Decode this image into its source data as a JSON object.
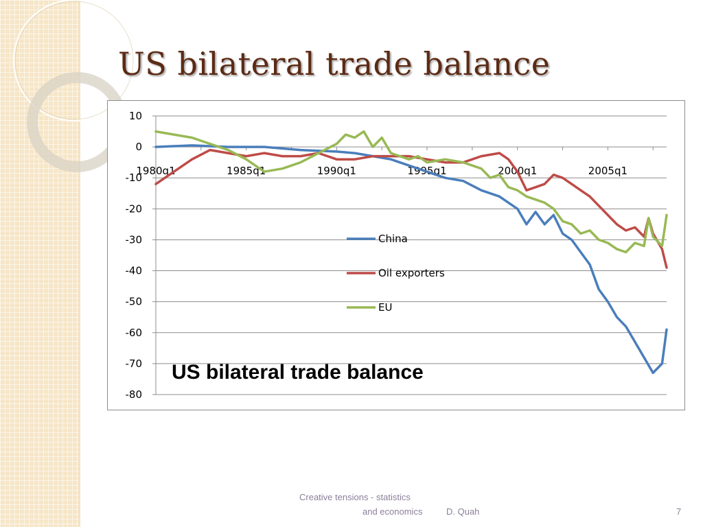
{
  "slide": {
    "title": "US bilateral trade balance",
    "caption": "US bilateral trade balance",
    "footer_line1": "Creative tensions - statistics",
    "footer_line2": "and economics",
    "author": "D. Quah",
    "page_number": "7"
  },
  "colors": {
    "title": "#5c2a14",
    "side_band": "#f6e6c8",
    "china": "#4a7ebb",
    "oil": "#be4b48",
    "eu": "#98b954"
  },
  "chart_data": {
    "type": "line",
    "title": "",
    "xlabel": "",
    "ylabel": "",
    "x_start": "1980q1",
    "x_end": "2008q2",
    "x_ticks": [
      "1980q1",
      "1985q1",
      "1990q1",
      "1995q1",
      "2000q1",
      "2005q1"
    ],
    "ylim": [
      -80,
      10
    ],
    "y_ticks": [
      10,
      0,
      -10,
      -20,
      -30,
      -40,
      -50,
      -60,
      -70,
      -80
    ],
    "grid": "horizontal",
    "legend_position": "center",
    "series": [
      {
        "name": "China",
        "color": "#4a7ebb",
        "points": [
          [
            "1980q1",
            0
          ],
          [
            "1982q1",
            0.5
          ],
          [
            "1984q1",
            0
          ],
          [
            "1986q1",
            0
          ],
          [
            "1988q1",
            -1
          ],
          [
            "1990q1",
            -1.5
          ],
          [
            "1991q1",
            -2
          ],
          [
            "1992q1",
            -3
          ],
          [
            "1993q1",
            -4
          ],
          [
            "1994q1",
            -6
          ],
          [
            "1995q1",
            -8
          ],
          [
            "1996q1",
            -10
          ],
          [
            "1997q1",
            -11
          ],
          [
            "1998q1",
            -14
          ],
          [
            "1999q1",
            -16
          ],
          [
            "2000q1",
            -20
          ],
          [
            "2000q3",
            -25
          ],
          [
            "2001q1",
            -21
          ],
          [
            "2001q3",
            -25
          ],
          [
            "2002q1",
            -22
          ],
          [
            "2002q3",
            -28
          ],
          [
            "2003q1",
            -30
          ],
          [
            "2003q3",
            -34
          ],
          [
            "2004q1",
            -38
          ],
          [
            "2004q3",
            -46
          ],
          [
            "2005q1",
            -50
          ],
          [
            "2005q3",
            -55
          ],
          [
            "2006q1",
            -58
          ],
          [
            "2006q3",
            -63
          ],
          [
            "2007q1",
            -68
          ],
          [
            "2007q3",
            -73
          ],
          [
            "2008q1",
            -70
          ],
          [
            "2008q2",
            -59
          ]
        ]
      },
      {
        "name": "Oil exporters",
        "color": "#be4b48",
        "points": [
          [
            "1980q1",
            -12
          ],
          [
            "1981q1",
            -8
          ],
          [
            "1982q1",
            -4
          ],
          [
            "1983q1",
            -1
          ],
          [
            "1984q1",
            -2
          ],
          [
            "1985q1",
            -3
          ],
          [
            "1986q1",
            -2
          ],
          [
            "1987q1",
            -3
          ],
          [
            "1988q1",
            -3
          ],
          [
            "1989q1",
            -2
          ],
          [
            "1990q1",
            -4
          ],
          [
            "1991q1",
            -4
          ],
          [
            "1992q1",
            -3
          ],
          [
            "1993q1",
            -3
          ],
          [
            "1994q1",
            -3
          ],
          [
            "1995q1",
            -4
          ],
          [
            "1996q1",
            -5
          ],
          [
            "1997q1",
            -5
          ],
          [
            "1998q1",
            -3
          ],
          [
            "1999q1",
            -2
          ],
          [
            "1999q3",
            -4
          ],
          [
            "2000q1",
            -8
          ],
          [
            "2000q3",
            -14
          ],
          [
            "2001q1",
            -13
          ],
          [
            "2001q3",
            -12
          ],
          [
            "2002q1",
            -9
          ],
          [
            "2002q3",
            -10
          ],
          [
            "2003q1",
            -12
          ],
          [
            "2003q3",
            -14
          ],
          [
            "2004q1",
            -16
          ],
          [
            "2004q3",
            -19
          ],
          [
            "2005q1",
            -22
          ],
          [
            "2005q3",
            -25
          ],
          [
            "2006q1",
            -27
          ],
          [
            "2006q3",
            -26
          ],
          [
            "2007q1",
            -29
          ],
          [
            "2007q2",
            -23
          ],
          [
            "2007q3",
            -28
          ],
          [
            "2008q1",
            -33
          ],
          [
            "2008q2",
            -39
          ]
        ]
      },
      {
        "name": "EU",
        "color": "#98b954",
        "points": [
          [
            "1980q1",
            5
          ],
          [
            "1981q1",
            4
          ],
          [
            "1982q1",
            3
          ],
          [
            "1983q1",
            1
          ],
          [
            "1984q1",
            -1
          ],
          [
            "1985q1",
            -4
          ],
          [
            "1986q1",
            -8
          ],
          [
            "1987q1",
            -7
          ],
          [
            "1988q1",
            -5
          ],
          [
            "1989q1",
            -2
          ],
          [
            "1990q1",
            1
          ],
          [
            "1990q3",
            4
          ],
          [
            "1991q1",
            3
          ],
          [
            "1991q3",
            5
          ],
          [
            "1992q1",
            0
          ],
          [
            "1992q3",
            3
          ],
          [
            "1993q1",
            -2
          ],
          [
            "1993q3",
            -3
          ],
          [
            "1994q1",
            -4
          ],
          [
            "1994q3",
            -3
          ],
          [
            "1995q1",
            -5
          ],
          [
            "1996q1",
            -4
          ],
          [
            "1997q1",
            -5
          ],
          [
            "1998q1",
            -7
          ],
          [
            "1998q3",
            -10
          ],
          [
            "1999q1",
            -9
          ],
          [
            "1999q3",
            -13
          ],
          [
            "2000q1",
            -14
          ],
          [
            "2000q3",
            -16
          ],
          [
            "2001q1",
            -17
          ],
          [
            "2001q3",
            -18
          ],
          [
            "2002q1",
            -20
          ],
          [
            "2002q3",
            -24
          ],
          [
            "2003q1",
            -25
          ],
          [
            "2003q3",
            -28
          ],
          [
            "2004q1",
            -27
          ],
          [
            "2004q3",
            -30
          ],
          [
            "2005q1",
            -31
          ],
          [
            "2005q3",
            -33
          ],
          [
            "2006q1",
            -34
          ],
          [
            "2006q3",
            -31
          ],
          [
            "2007q1",
            -32
          ],
          [
            "2007q2",
            -23
          ],
          [
            "2007q3",
            -29
          ],
          [
            "2008q1",
            -32
          ],
          [
            "2008q2",
            -22
          ]
        ]
      }
    ]
  }
}
